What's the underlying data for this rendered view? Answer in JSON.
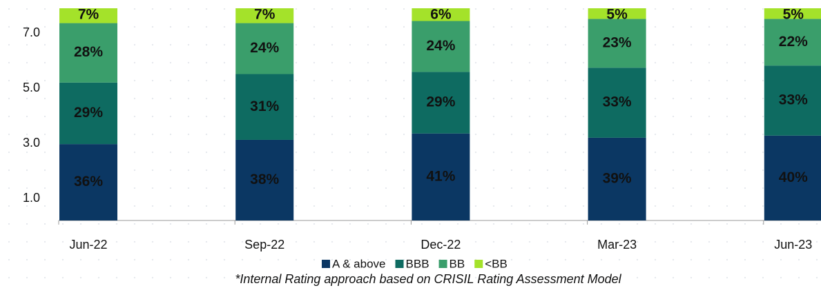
{
  "chart_data": {
    "type": "stacked_percent_bar",
    "categories": [
      "Jun-22",
      "Sep-22",
      "Dec-22",
      "Mar-23",
      "Jun-23"
    ],
    "series": [
      {
        "name": "A & above",
        "color": "#0b3763",
        "values": [
          36,
          38,
          41,
          39,
          40
        ],
        "value_labels": [
          "36%",
          "38%",
          "41%",
          "39%",
          "40%"
        ]
      },
      {
        "name": "BBB",
        "color": "#0e6b61",
        "values": [
          29,
          31,
          29,
          33,
          33
        ],
        "value_labels": [
          "29%",
          "31%",
          "29%",
          "33%",
          "33%"
        ]
      },
      {
        "name": "BB",
        "color": "#3a9e6b",
        "values": [
          28,
          24,
          24,
          23,
          22
        ],
        "value_labels": [
          "28%",
          "24%",
          "24%",
          "23%",
          "22%"
        ]
      },
      {
        "name": "<BB",
        "color": "#a4e22a",
        "values": [
          7,
          7,
          6,
          5,
          5
        ],
        "value_labels": [
          "7%",
          "7%",
          "6%",
          "5%",
          "5%"
        ]
      }
    ],
    "ylim": [
      0.2,
      7.9
    ],
    "yticks": [
      {
        "value": 1,
        "label": "1.0"
      },
      {
        "value": 3,
        "label": "3.0"
      },
      {
        "value": 5,
        "label": "5.0"
      },
      {
        "value": 7,
        "label": "7.0"
      }
    ],
    "legend": "bottom",
    "footnote": "*Internal Rating approach based on CRISIL Rating Assessment Model"
  }
}
